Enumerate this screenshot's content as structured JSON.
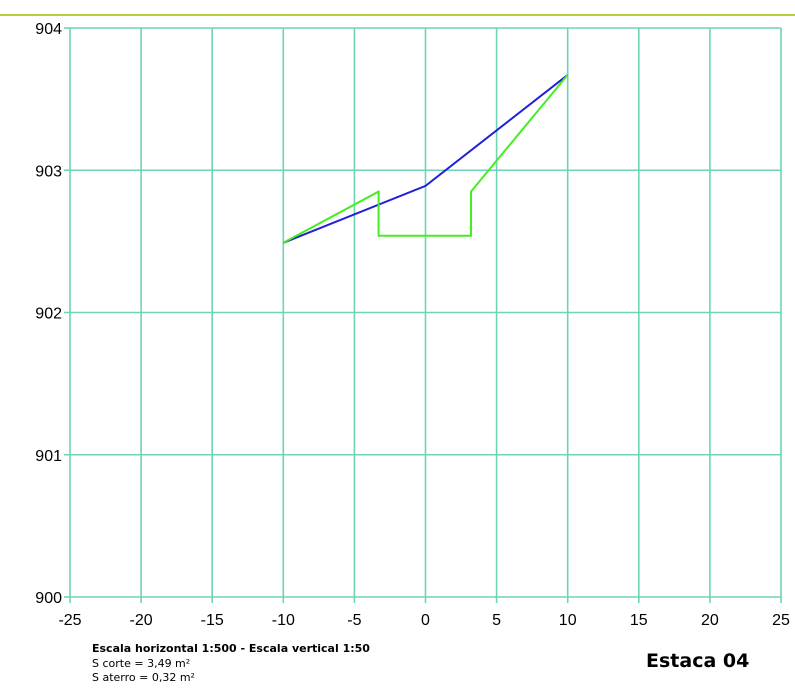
{
  "chart_data": {
    "type": "line",
    "xlim": [
      -25,
      25
    ],
    "ylim": [
      900,
      904
    ],
    "x_ticks": [
      "-25",
      "-20",
      "-15",
      "-10",
      "-5",
      "0",
      "5",
      "10",
      "15",
      "20",
      "25"
    ],
    "y_ticks": [
      "904",
      "903",
      "902",
      "901",
      "900"
    ],
    "grid": true,
    "series": [
      {
        "color": "#2020d8",
        "points": [
          [
            -10,
            902.49
          ],
          [
            0,
            902.89
          ],
          [
            10,
            903.67
          ]
        ]
      },
      {
        "color": "#44ee22",
        "points": [
          [
            -10,
            902.49
          ],
          [
            -3.3,
            902.85
          ],
          [
            -3.3,
            902.54
          ],
          [
            3.2,
            902.54
          ],
          [
            3.2,
            902.85
          ],
          [
            10,
            903.67
          ]
        ]
      }
    ]
  },
  "footer": {
    "scale": "Escala horizontal 1:500 - Escala vertical 1:50",
    "cut_area": "S corte = 3,49 m²",
    "fill_area": "S aterro = 0,32 m²",
    "station": "Estaca 04"
  },
  "colors": {
    "grid": "#6fd4b4",
    "accent_rule": "#b5cf3a"
  }
}
